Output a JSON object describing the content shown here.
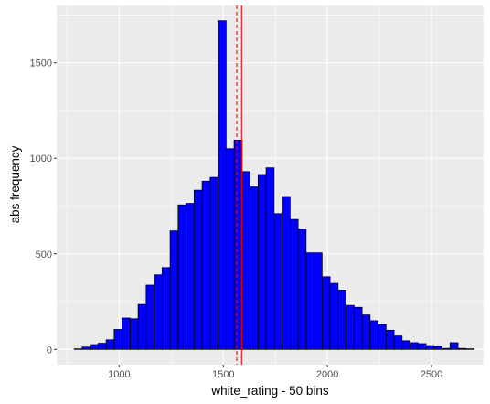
{
  "chart_data": {
    "type": "bar",
    "subtype": "histogram",
    "xlabel": "white_rating  -  50  bins",
    "ylabel": "abs frequency",
    "xlim": [
      700,
      2750
    ],
    "ylim": [
      -80,
      1800
    ],
    "x_ticks": [
      1000,
      1500,
      2000,
      2500
    ],
    "y_ticks": [
      0,
      500,
      1000,
      1500
    ],
    "x_tick_labels": [
      "1000",
      "1500",
      "2000",
      "2500"
    ],
    "y_tick_labels": [
      "0",
      "500",
      "1000",
      "1500"
    ],
    "bin_start": 784,
    "bin_width": 38.4,
    "counts": [
      3,
      12,
      25,
      32,
      50,
      104,
      164,
      160,
      235,
      336,
      390,
      428,
      620,
      756,
      764,
      833,
      880,
      900,
      1720,
      1050,
      1095,
      930,
      850,
      915,
      950,
      710,
      800,
      680,
      630,
      505,
      505,
      380,
      345,
      310,
      230,
      220,
      180,
      150,
      130,
      100,
      70,
      45,
      35,
      30,
      20,
      15,
      5,
      35,
      5,
      3
    ],
    "vlines": [
      {
        "x": 1588,
        "style": "solid",
        "color": "#ff0000"
      },
      {
        "x": 1565,
        "style": "dashed",
        "color": "#ff0000"
      }
    ],
    "colors": {
      "bar_fill": "#0000ff",
      "bar_stroke": "#000000",
      "panel_background": "#ebebeb",
      "grid": "#ffffff"
    },
    "grid": true
  }
}
